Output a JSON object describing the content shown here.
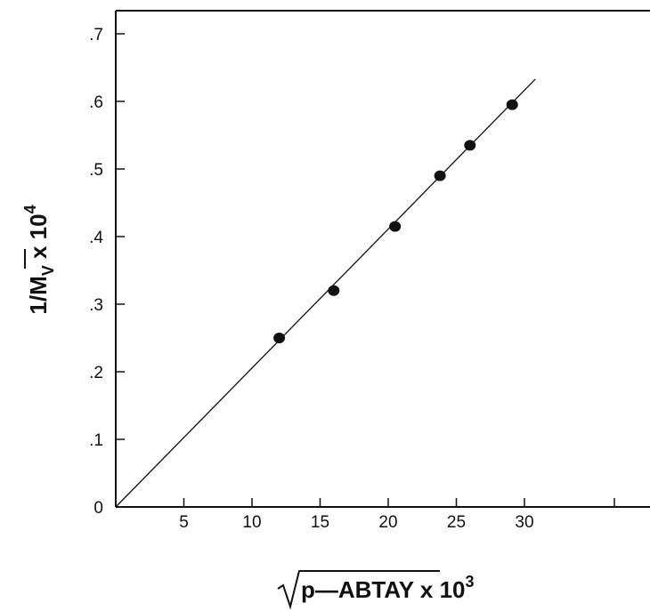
{
  "chart_data": {
    "type": "scatter",
    "xlabel": {
      "radicand": "p—ABTAY",
      "multiplier": "x 10",
      "exponent": "3"
    },
    "ylabel": {
      "main": "1/M",
      "subscript": "V",
      "multiplier": "x 10",
      "exponent": "4"
    },
    "xlim": [
      0,
      31
    ],
    "ylim": [
      0,
      0.7
    ],
    "x_ticks": [
      {
        "value": 5,
        "label": "5"
      },
      {
        "value": 10,
        "label": "10"
      },
      {
        "value": 15,
        "label": "15"
      },
      {
        "value": 20,
        "label": "20"
      },
      {
        "value": 25,
        "label": "25"
      },
      {
        "value": 30,
        "label": "30"
      }
    ],
    "y_ticks": [
      {
        "value": 0,
        "label": "0"
      },
      {
        "value": 0.1,
        "label": ".1"
      },
      {
        "value": 0.2,
        "label": ".2"
      },
      {
        "value": 0.3,
        "label": ".3"
      },
      {
        "value": 0.4,
        "label": ".4"
      },
      {
        "value": 0.5,
        "label": ".5"
      },
      {
        "value": 0.6,
        "label": ".6"
      },
      {
        "value": 0.7,
        "label": ".7"
      }
    ],
    "points": [
      {
        "x": 12.0,
        "y": 0.25
      },
      {
        "x": 16.0,
        "y": 0.32
      },
      {
        "x": 20.5,
        "y": 0.415
      },
      {
        "x": 23.8,
        "y": 0.49
      },
      {
        "x": 26.0,
        "y": 0.535
      },
      {
        "x": 29.1,
        "y": 0.595
      }
    ],
    "fit_line": {
      "x": [
        0,
        30.8
      ],
      "y": [
        0,
        0.633
      ]
    },
    "grid": false
  }
}
